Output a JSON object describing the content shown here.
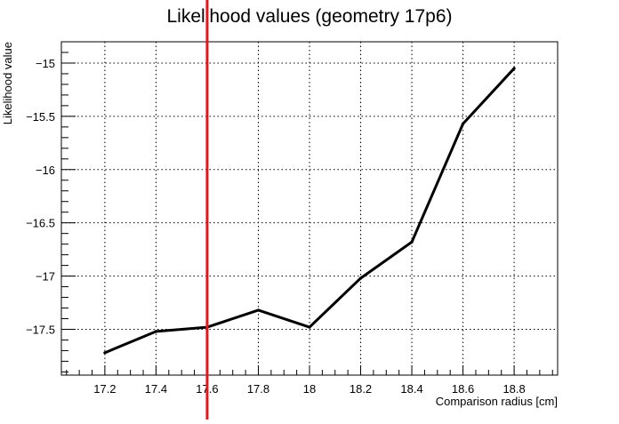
{
  "chart_data": {
    "type": "line",
    "title": "Likelihood values (geometry 17p6)",
    "xlabel": "Comparison radius [cm]",
    "ylabel": "Likelihood value",
    "xlim": [
      17.03,
      18.97
    ],
    "ylim": [
      -17.93,
      -14.8
    ],
    "x_ticks": [
      17.2,
      17.4,
      17.6,
      17.8,
      18,
      18.2,
      18.4,
      18.6,
      18.8
    ],
    "x_tick_labels": [
      "17.2",
      "17.4",
      "17.6",
      "17.8",
      "18",
      "18.2",
      "18.4",
      "18.6",
      "18.8"
    ],
    "y_ticks": [
      -17.5,
      -17,
      -16.5,
      -16,
      -15.5,
      -15
    ],
    "y_tick_labels": [
      "−17.5",
      "−17",
      "−16.5",
      "−16",
      "−15.5",
      "−15"
    ],
    "grid": true,
    "series": [
      {
        "x": [
          17.2,
          17.4,
          17.6,
          17.8,
          18.0,
          18.2,
          18.4,
          18.6,
          18.8
        ],
        "y": [
          -17.72,
          -17.52,
          -17.48,
          -17.32,
          -17.48,
          -17.02,
          -16.68,
          -15.57,
          -15.05
        ],
        "color": "#000000"
      }
    ],
    "reference_line": {
      "x": 17.6,
      "color": "#e8141a"
    }
  }
}
